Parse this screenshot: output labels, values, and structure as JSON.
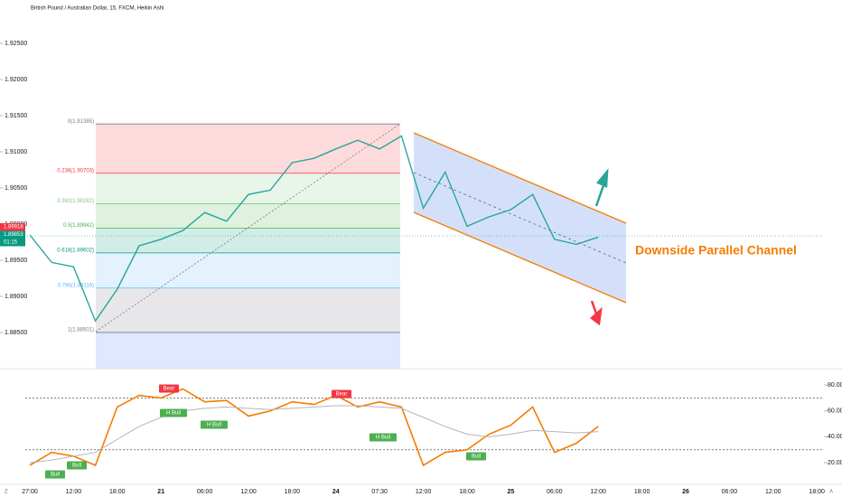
{
  "header": {
    "title": "British Pound / Australian Dollar, 15, FXCM, Heikin Ashi"
  },
  "price_labels": [
    {
      "text": "1.89918",
      "color": "#f23645"
    },
    {
      "text": "1.89853",
      "color": "#089981"
    },
    {
      "text": "01:15",
      "color": "#089981"
    }
  ],
  "channel_label": "Downside Parallel Channel",
  "toolbar": [
    "Z",
    "A"
  ],
  "chart_data": [
    {
      "type": "line",
      "color": "#26a69a",
      "values": [
        1.8985,
        1.8947,
        1.8941,
        1.8866,
        1.891,
        1.897,
        1.8979,
        1.8991,
        1.9016,
        1.9004,
        1.9041,
        1.9047,
        1.9085,
        1.9091,
        1.9104,
        1.9116,
        1.9104,
        1.9122,
        1.9022,
        1.9072,
        1.8997,
        1.901,
        1.902,
        1.9041,
        1.8979,
        1.8972,
        1.8982,
        null,
        null,
        null,
        null,
        null,
        null,
        null,
        null,
        null,
        null
      ],
      "ylim": [
        1.88,
        1.931
      ],
      "yticks": [
        {
          "value": 1.925,
          "label": "1.92500"
        },
        {
          "value": 1.92,
          "label": "1.92000"
        },
        {
          "value": 1.915,
          "label": "1.91500"
        },
        {
          "value": 1.91,
          "label": "1.91000"
        },
        {
          "value": 1.905,
          "label": "1.90500"
        },
        {
          "value": 1.9,
          "label": "1.90000"
        },
        {
          "value": 1.895,
          "label": "1.89500"
        },
        {
          "value": 1.89,
          "label": "1.89000"
        },
        {
          "value": 1.885,
          "label": "1.88500"
        }
      ],
      "fib_levels": [
        {
          "label": "0(1.91385)",
          "value": 1.91385,
          "color": "#787b86"
        },
        {
          "label": "0.236(1.90703)",
          "value": 1.90703,
          "color": "#f23645"
        },
        {
          "label": "0.382(1.90282)",
          "value": 1.90282,
          "color": "#81c784"
        },
        {
          "label": "0.5(1.89942)",
          "value": 1.89942,
          "color": "#4caf50"
        },
        {
          "label": "0.618(1.89602)",
          "value": 1.89602,
          "color": "#089981"
        },
        {
          "label": "0.786(1.89116)",
          "value": 1.89116,
          "color": "#64b5f6"
        },
        {
          "label": "1(1.88501)",
          "value": 1.88501,
          "color": "#787b86"
        }
      ]
    },
    {
      "type": "line",
      "categories": [
        "27:00",
        null,
        "12:00",
        null,
        "18:00",
        null,
        "21",
        null,
        "06:00",
        null,
        "12:00",
        null,
        "18:00",
        null,
        "24",
        null,
        "07:30",
        null,
        "12:00",
        null,
        "18:00",
        null,
        "25",
        null,
        "06:00",
        null,
        "12:00",
        null,
        "18:00",
        null,
        "26",
        null,
        "06:00",
        null,
        "12:00",
        null,
        "18:00"
      ],
      "series": [
        {
          "color": "#f57c00",
          "values": [
            18,
            28,
            25,
            18,
            63,
            72,
            70,
            77,
            67,
            68,
            56,
            60,
            67,
            65,
            72,
            63,
            67,
            63,
            18,
            28,
            30,
            42,
            49,
            63,
            28,
            35,
            48,
            null,
            null,
            null,
            null,
            null,
            null,
            null,
            null,
            null,
            null
          ]
        },
        {
          "color": "#b2b5be",
          "values": [
            20,
            22,
            25,
            28,
            38,
            48,
            55,
            60,
            62,
            63,
            62,
            61,
            62,
            63,
            64,
            64,
            63,
            62,
            55,
            48,
            42,
            40,
            42,
            45,
            44,
            43,
            44,
            null,
            null,
            null,
            null,
            null,
            null,
            null,
            null,
            null,
            null
          ]
        }
      ],
      "ylim": [
        0.5,
        91.2
      ],
      "yticks": [
        {
          "value": 80,
          "label": "80.00"
        },
        {
          "value": 60,
          "label": "60.00"
        },
        {
          "value": 40,
          "label": "40.00"
        },
        {
          "value": 20,
          "label": "20.00"
        }
      ],
      "levels": [
        70,
        30
      ],
      "annotations": [
        {
          "text": "Bull",
          "color": "#4caf50"
        },
        {
          "text": "Bull",
          "color": "#4caf50"
        },
        {
          "text": "Bear",
          "color": "#f23645"
        },
        {
          "text": "H Bull",
          "color": "#4caf50"
        },
        {
          "text": "H Bull",
          "color": "#4caf50"
        },
        {
          "text": "Bear",
          "color": "#f23645"
        },
        {
          "text": "H Bull",
          "color": "#4caf50"
        },
        {
          "text": "Bull",
          "color": "#4caf50"
        }
      ]
    }
  ]
}
